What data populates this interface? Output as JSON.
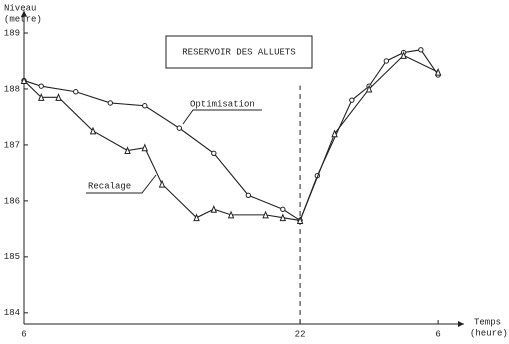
{
  "chart_data": {
    "type": "line",
    "title": "RESERVOIR DES ALLUETS",
    "x_label": [
      "Temps",
      "(heure)"
    ],
    "y_label": [
      "Niveau",
      "(metre)"
    ],
    "xlim": [
      6,
      31.5
    ],
    "ylim": [
      183.8,
      189.4
    ],
    "xticks": [
      6,
      22,
      {
        "value": 30,
        "label": "6"
      }
    ],
    "yticks": [
      184,
      185,
      186,
      187,
      188,
      189
    ],
    "vline": 22,
    "series": [
      {
        "name": "Optimisation",
        "color": "#222222",
        "marker": "circle",
        "x": [
          6,
          7,
          9,
          11,
          13,
          15,
          17,
          19,
          21,
          22,
          23,
          25,
          26,
          27,
          28,
          29,
          30
        ],
        "values": [
          188.15,
          188.05,
          187.95,
          187.75,
          187.7,
          187.3,
          186.85,
          186.1,
          185.85,
          185.65,
          186.45,
          187.8,
          188.05,
          188.5,
          188.65,
          188.7,
          188.25
        ]
      },
      {
        "name": "Recalage",
        "color": "#222222",
        "marker": "triangle",
        "x": [
          6,
          7,
          8,
          10,
          12,
          13,
          14,
          16,
          17,
          18,
          20,
          21,
          22,
          24,
          26,
          28,
          30
        ],
        "values": [
          188.15,
          187.85,
          187.85,
          187.25,
          186.9,
          186.95,
          186.3,
          185.7,
          185.85,
          185.75,
          185.75,
          185.7,
          185.65,
          187.2,
          188.0,
          188.6,
          188.3
        ]
      }
    ]
  }
}
